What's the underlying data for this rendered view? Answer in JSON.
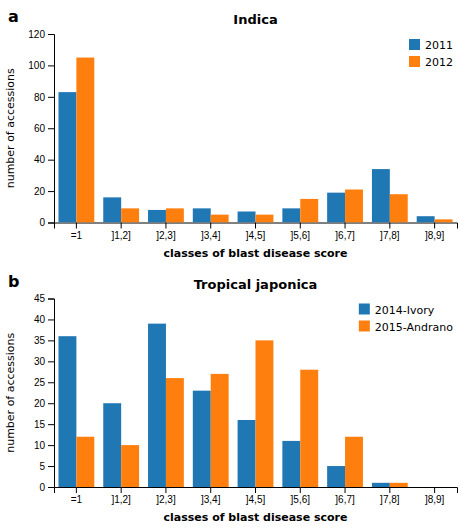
{
  "chart_data": [
    {
      "type": "bar",
      "title": "Indica",
      "annotations": [
        "a"
      ],
      "categories": [
        "=1",
        "]1,2]",
        "]2,3]",
        "]3,4]",
        "]4,5]",
        "]5,6]",
        "]6,7]",
        "]7,8]",
        "]8,9]"
      ],
      "series": [
        {
          "name": "2011",
          "values": [
            83,
            16,
            8,
            9,
            7,
            9,
            19,
            34,
            4
          ]
        },
        {
          "name": "2012",
          "values": [
            105,
            9,
            9,
            5,
            5,
            15,
            21,
            18,
            2
          ]
        }
      ],
      "ylabel": "number of accessions",
      "xlabel": "classes of blast disease score",
      "ylim": [
        0,
        120
      ],
      "yticks": [
        0,
        20,
        40,
        60,
        80,
        100,
        120
      ],
      "legend": "upper right",
      "grid": false
    },
    {
      "type": "bar",
      "title": "Tropical japonica",
      "annotations": [
        "b"
      ],
      "categories": [
        "=1",
        "]1,2]",
        "]2,3]",
        "]3,4]",
        "]4,5]",
        "]5,6]",
        "]6,7]",
        "]7,8]",
        "]8,9]"
      ],
      "series": [
        {
          "name": "2014-Ivory",
          "values": [
            36,
            20,
            39,
            23,
            16,
            11,
            5,
            1,
            0
          ]
        },
        {
          "name": "2015-Andrano",
          "values": [
            12,
            10,
            26,
            27,
            35,
            28,
            12,
            1,
            0
          ]
        }
      ],
      "ylabel": "number of accessions",
      "xlabel": "classes of blast disease score",
      "ylim": [
        0,
        45
      ],
      "yticks": [
        0,
        5,
        10,
        15,
        20,
        25,
        30,
        35,
        40,
        45
      ],
      "legend": "upper right",
      "grid": false
    }
  ]
}
